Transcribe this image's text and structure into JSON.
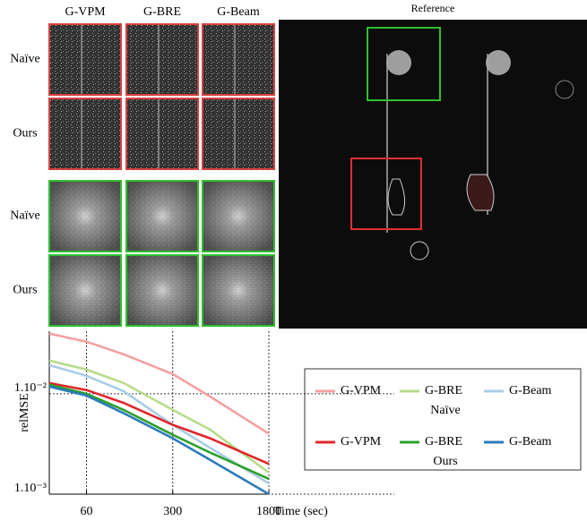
{
  "figure": {
    "columns": [
      "G-VPM",
      "G-BRE",
      "G-Beam"
    ],
    "rows": [
      "Naïve",
      "Ours",
      "Naïve",
      "Ours"
    ],
    "reference": "Reference"
  },
  "chart_data": {
    "type": "line",
    "xlabel": "Time (sec)",
    "ylabel": "relMSE",
    "xscale": "log",
    "yscale": "log",
    "x": [
      30,
      60,
      120,
      300,
      600,
      1800
    ],
    "xlim": [
      30,
      1800
    ],
    "ylim": [
      0.001,
      0.042
    ],
    "xticks": [
      60,
      300,
      1800
    ],
    "yticks": [
      {
        "value": 0.01,
        "label": "1.10⁻²"
      },
      {
        "value": 0.001,
        "label": "1.10⁻³"
      }
    ],
    "grid": true,
    "legend_groups": [
      "Naïve",
      "Ours"
    ],
    "series": [
      {
        "name": "G-VPM",
        "color": "#f4a0a0",
        "values": [
          0.0397,
          0.033,
          0.0247,
          0.0157,
          0.0094,
          0.004
        ]
      },
      {
        "name": "G-BRE",
        "color": "#b5dc8a",
        "values": [
          0.0214,
          0.0174,
          0.0128,
          0.0069,
          0.0044,
          0.00164
        ]
      },
      {
        "name": "G-Beam",
        "color": "#a8cce6",
        "values": [
          0.0193,
          0.0151,
          0.0106,
          0.0049,
          0.0029,
          0.00128
        ]
      },
      {
        "name": "G-VPM",
        "color": "#e0272a",
        "values": [
          0.0128,
          0.0109,
          0.0081,
          0.0049,
          0.0036,
          0.002
        ]
      },
      {
        "name": "G-BRE",
        "color": "#2ca02c",
        "values": [
          0.0123,
          0.01,
          0.0069,
          0.0039,
          0.0026,
          0.00142
        ]
      },
      {
        "name": "G-Beam",
        "color": "#2b7bba",
        "values": [
          0.0118,
          0.0096,
          0.0064,
          0.0036,
          0.0022,
          0.001
        ]
      }
    ]
  }
}
